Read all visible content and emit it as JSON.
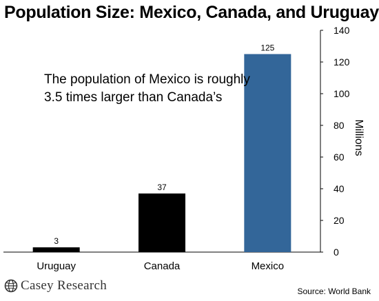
{
  "chart_data": {
    "type": "bar",
    "title": "Population Size: Mexico, Canada, and Uruguay",
    "categories": [
      "Uruguay",
      "Canada",
      "Mexico"
    ],
    "values": [
      3,
      37,
      125
    ],
    "data_labels": [
      "3",
      "37",
      "125"
    ],
    "bar_colors": [
      "#000000",
      "#000000",
      "#336699"
    ],
    "ylabel": "Millions",
    "ylim": [
      0,
      140
    ],
    "yticks": [
      0,
      20,
      40,
      60,
      80,
      100,
      120,
      140
    ],
    "y_axis_side": "right",
    "grid": false,
    "annotation": [
      "The population of Mexico is roughly",
      "3.5 times larger than Canada’s"
    ],
    "source": "Source: World Bank"
  },
  "branding": {
    "logo_text": "Casey Research",
    "logo_icon": "casey-research-globe-icon"
  }
}
